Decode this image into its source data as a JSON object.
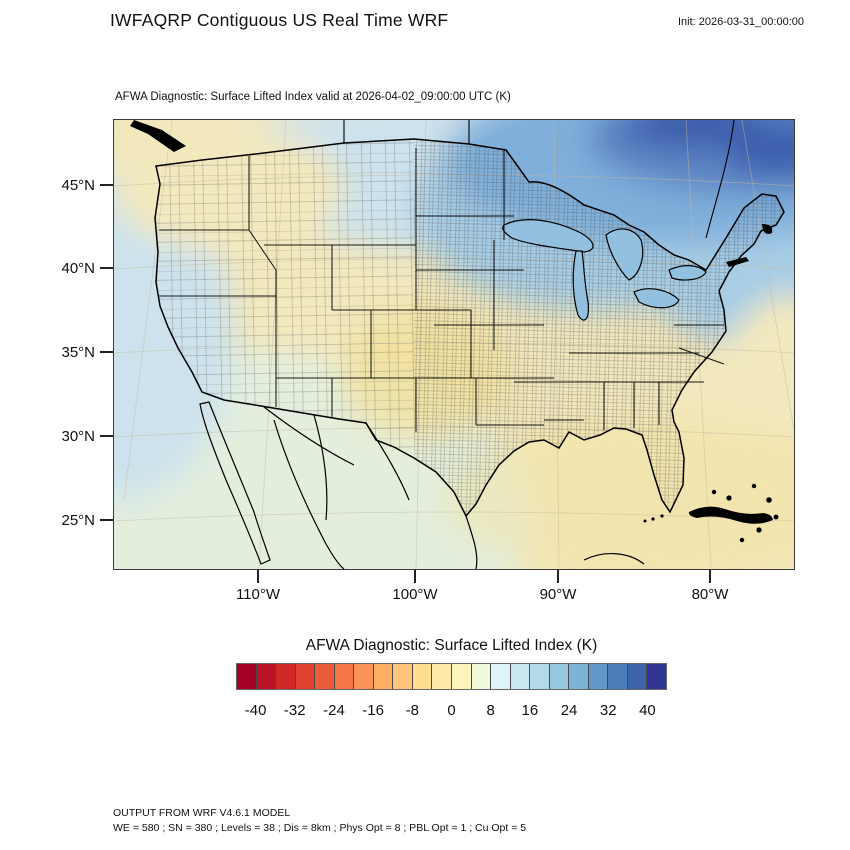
{
  "header": {
    "title": "IWFAQRP Contiguous US Real Time WRF",
    "init_label": "Init: 2026-03-31_00:00:00"
  },
  "map": {
    "subtitle": "AFWA Diagnostic: Surface Lifted Index valid at 2026-04-02_09:00:00 UTC   (K)",
    "y_ticks": [
      "45°N",
      "40°N",
      "35°N",
      "30°N",
      "25°N"
    ],
    "x_ticks": [
      "110°W",
      "100°W",
      "90°W",
      "80°W"
    ]
  },
  "map_colors": {
    "base_yellow": "#f2e8bd",
    "warm_yellow": "#f1e09b",
    "pale_green": "#e3eedd",
    "pale_blue": "#cde2ec",
    "light_blue": "#a8cde5",
    "mid_blue": "#7fafda",
    "deep_blue": "#5b82c2",
    "navy": "#3a5cab",
    "lakes_blue": "#93c0de",
    "graticule": "#c4bba0",
    "boundary": "#000000"
  },
  "colorbar": {
    "title": "AFWA Diagnostic: Surface Lifted Index  (K)"
  },
  "footer": {
    "line1": "OUTPUT FROM WRF V4.6.1 MODEL",
    "line2": "WE = 580 ; SN = 380 ; Levels = 38 ; Dis = 8km ; Phys Opt = 8 ; PBL Opt = 1 ; Cu Opt = 5"
  },
  "chart_data": {
    "type": "heatmap",
    "title": "AFWA Diagnostic: Surface Lifted Index  (K)",
    "page_title": "IWFAQRP Contiguous US Real Time WRF",
    "variable": "Surface Lifted Index",
    "units": "K",
    "init_time": "2026-03-31_00:00:00",
    "valid_time": "2026-04-02_09:00:00 UTC",
    "region": "Contiguous United States (WRF Lambert-conformal domain)",
    "x_ticks": [
      "110°W",
      "100°W",
      "90°W",
      "80°W"
    ],
    "y_ticks": [
      "45°N",
      "40°N",
      "35°N",
      "30°N",
      "25°N"
    ],
    "colorbar": {
      "tick_labels": [
        "-40",
        "-32",
        "-24",
        "-16",
        "-8",
        "0",
        "8",
        "16",
        "24",
        "32",
        "40"
      ],
      "value_range": [
        -44,
        44
      ],
      "segment_step": 4,
      "n_segments": 22,
      "colors": [
        "#a50026",
        "#ba1326",
        "#cf2827",
        "#df432f",
        "#ec5c3a",
        "#f57747",
        "#fa9355",
        "#fdae62",
        "#fec57a",
        "#fedc90",
        "#feeaa6",
        "#fdf5b9",
        "#f0f8dc",
        "#e0f3f8",
        "#c9e8f2",
        "#b1dbea",
        "#96c8e0",
        "#7bb4d6",
        "#6099c9",
        "#4b7eb9",
        "#3d64a9",
        "#313695"
      ]
    },
    "field_regions": [
      {
        "region": "Canada, top of domain (Ontario/Quebec)",
        "approx_value_K": "20 to 32"
      },
      {
        "region": "Great Lakes / Upper Midwest / Northeast US",
        "approx_value_K": "8 to 20"
      },
      {
        "region": "Northern Plains (ND/SD/MN)",
        "approx_value_K": "4 to 8"
      },
      {
        "region": "Pacific Northwest (WA/OR/ID/MT)",
        "approx_value_K": "-4 to 0"
      },
      {
        "region": "Offshore California / Baja Pacific",
        "approx_value_K": "0 to 8"
      },
      {
        "region": "Southwest US / interior Mexico",
        "approx_value_K": "0 to 4"
      },
      {
        "region": "Central Plains (KS/OK) local minimum",
        "approx_value_K": "-8 to -4"
      },
      {
        "region": "Gulf of Mexico / Florida / SE Atlantic offshore",
        "approx_value_K": "-4 to 0"
      }
    ],
    "model_config": "WRF V4.6.1 ; WE = 580 ; SN = 380 ; Levels = 38 ; Dis = 8km ; Phys Opt = 8 ; PBL Opt = 1 ; Cu Opt = 5"
  }
}
